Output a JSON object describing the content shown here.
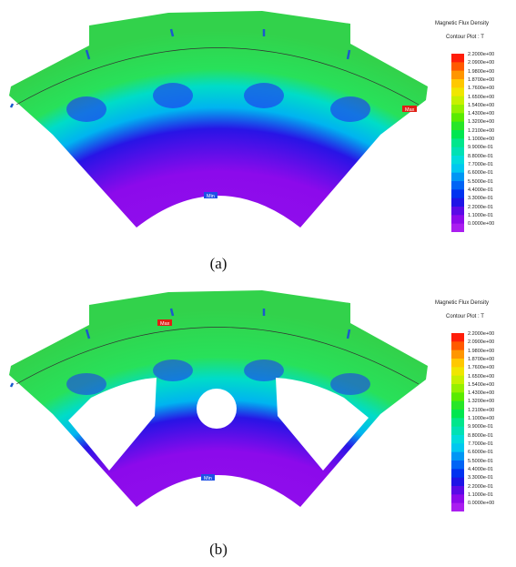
{
  "legend": {
    "title": "Magnetic Flux Density",
    "subtitle": "Contour Plot : T",
    "ticks": [
      "2.2000e+00",
      "2.0900e+00",
      "1.9800e+00",
      "1.8700e+00",
      "1.7600e+00",
      "1.6500e+00",
      "1.5400e+00",
      "1.4300e+00",
      "1.3200e+00",
      "1.2100e+00",
      "1.1000e+00",
      "9.9000e-01",
      "8.8000e-01",
      "7.7000e-01",
      "6.6000e-01",
      "5.5000e-01",
      "4.4000e-01",
      "3.3000e-01",
      "2.2000e-01",
      "1.1000e-01",
      "0.0000e+00"
    ],
    "colors": [
      "#ff1e0a",
      "#ff5a00",
      "#ff9600",
      "#ffc800",
      "#f0e600",
      "#c8f000",
      "#96f000",
      "#5aeb00",
      "#28e628",
      "#00e650",
      "#00e68c",
      "#00e1b4",
      "#00dcdc",
      "#00c8f0",
      "#0096f5",
      "#0064f5",
      "#0032f0",
      "#1e14e6",
      "#5a0ae6",
      "#8c0aeb",
      "#aa1ef0"
    ]
  },
  "panels": [
    {
      "caption": "(a)",
      "max_label": "Max",
      "min_label": "Min"
    },
    {
      "caption": "(b)",
      "max_label": "Max",
      "min_label": "Min"
    }
  ]
}
